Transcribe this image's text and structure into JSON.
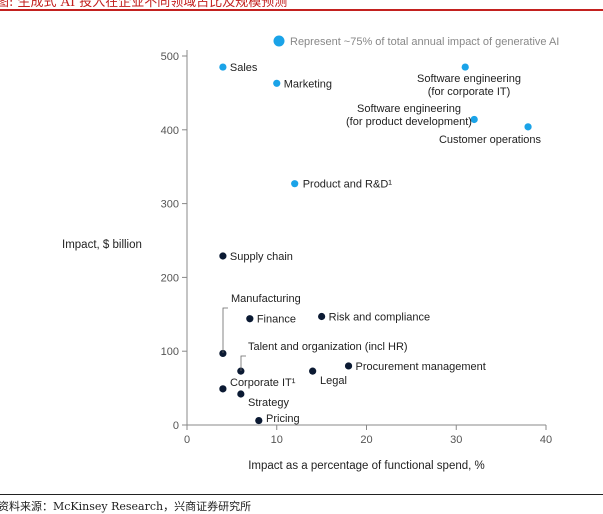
{
  "caption": "图: 生成式 AI 投入在企业不同领域占比及规模预测",
  "source": "资料来源：McKinsey Research，兴商证券研究所",
  "chart_data": {
    "type": "scatter",
    "title": "",
    "xlabel": "Impact as a percentage of functional spend, %",
    "ylabel": "Impact, $ billion",
    "xlim": [
      0,
      40
    ],
    "ylim": [
      0,
      500
    ],
    "xticks": [
      0,
      10,
      20,
      30,
      40
    ],
    "yticks": [
      0,
      100,
      200,
      300,
      400,
      500
    ],
    "grid": false,
    "legend": {
      "label": "Represent ~75% of total annual impact of generative AI",
      "color": "#1aa3e8",
      "placement": "top"
    },
    "colors": {
      "highlight": "#1aa3e8",
      "other": "#0b1a33"
    },
    "points": [
      {
        "label": "Sales",
        "x": 4,
        "y": 485,
        "group": "highlight"
      },
      {
        "label": "Marketing",
        "x": 10,
        "y": 463,
        "group": "highlight"
      },
      {
        "label": "Software engineering\n(for corporate IT)",
        "x": 31,
        "y": 485,
        "group": "highlight"
      },
      {
        "label": "Software engineering\n(for product development)",
        "x": 32,
        "y": 414,
        "group": "highlight"
      },
      {
        "label": "Customer operations",
        "x": 38,
        "y": 404,
        "group": "highlight"
      },
      {
        "label": "Product and R&D¹",
        "x": 12,
        "y": 327,
        "group": "highlight"
      },
      {
        "label": "Supply chain",
        "x": 4,
        "y": 229,
        "group": "other"
      },
      {
        "label": "Manufacturing",
        "x": 4,
        "y": 97,
        "group": "other"
      },
      {
        "label": "Finance",
        "x": 7,
        "y": 144,
        "group": "other"
      },
      {
        "label": "Risk and compliance",
        "x": 15,
        "y": 147,
        "group": "other"
      },
      {
        "label": "Talent and organization (incl HR)",
        "x": 6,
        "y": 73,
        "group": "other"
      },
      {
        "label": "Procurement management",
        "x": 18,
        "y": 80,
        "group": "other"
      },
      {
        "label": "Legal",
        "x": 14,
        "y": 73,
        "group": "other"
      },
      {
        "label": "Corporate IT¹",
        "x": 4,
        "y": 49,
        "group": "other"
      },
      {
        "label": "Strategy",
        "x": 6,
        "y": 42,
        "group": "other"
      },
      {
        "label": "Pricing",
        "x": 8,
        "y": 6,
        "group": "other"
      }
    ]
  }
}
